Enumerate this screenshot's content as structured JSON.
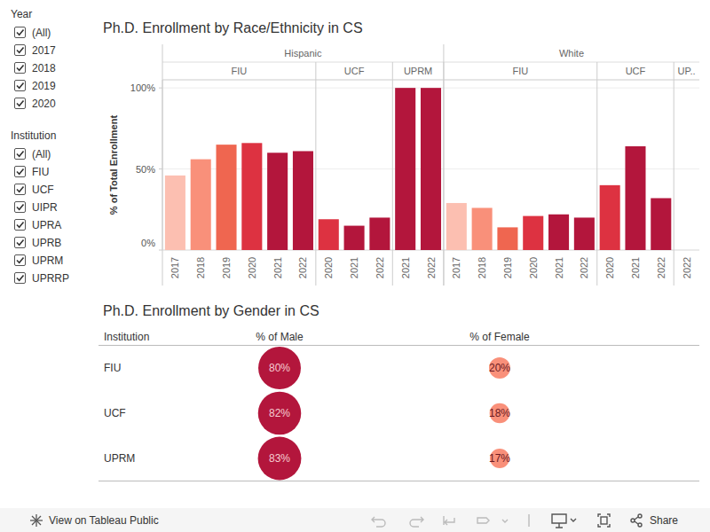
{
  "chart_data": [
    {
      "type": "bar",
      "title": "Ph.D. Enrollment by Race/Ethnicity in CS",
      "ylabel": "% of Total Enrollment",
      "categories": [
        "2017",
        "2018",
        "2019",
        "2020",
        "2021",
        "2022",
        "2020",
        "2021",
        "2022",
        "2021",
        "2022",
        "2017",
        "2018",
        "2019",
        "2020",
        "2021",
        "2022",
        "2020",
        "2021",
        "2022",
        "2022"
      ],
      "race": [
        "Hispanic",
        "Hispanic",
        "Hispanic",
        "Hispanic",
        "Hispanic",
        "Hispanic",
        "Hispanic",
        "Hispanic",
        "Hispanic",
        "Hispanic",
        "Hispanic",
        "White",
        "White",
        "White",
        "White",
        "White",
        "White",
        "White",
        "White",
        "White",
        "White"
      ],
      "institution": [
        "FIU",
        "FIU",
        "FIU",
        "FIU",
        "FIU",
        "FIU",
        "UCF",
        "UCF",
        "UCF",
        "UPRM",
        "UPRM",
        "FIU",
        "FIU",
        "FIU",
        "FIU",
        "FIU",
        "FIU",
        "UCF",
        "UCF",
        "UCF",
        "UP.."
      ],
      "values": [
        46,
        56,
        65,
        66,
        60,
        61,
        19,
        15,
        20,
        100,
        100,
        29,
        26,
        14,
        21,
        22,
        20,
        40,
        64,
        32,
        0
      ],
      "colors": [
        "#fcbfb1",
        "#f9907a",
        "#ef6650",
        "#dd3241",
        "#b3163c",
        "#b3163c",
        "#dd3241",
        "#b3163c",
        "#b3163c",
        "#b3163c",
        "#b3163c",
        "#fcbfb1",
        "#f9907a",
        "#ef6650",
        "#dd3241",
        "#b3163c",
        "#b3163c",
        "#dd3241",
        "#b3163c",
        "#b3163c",
        "#b3163c"
      ],
      "ylim": [
        0,
        105
      ],
      "yticks": [
        {
          "value": 0,
          "label": "0%"
        },
        {
          "value": 50,
          "label": "50%"
        },
        {
          "value": 100,
          "label": "100%"
        }
      ],
      "grid": true
    },
    {
      "type": "bubble_table",
      "title": "Ph.D. Enrollment by Gender in CS",
      "category_label": "Institution",
      "categories": [
        "FIU",
        "UCF",
        "UPRM"
      ],
      "data_labels": true,
      "series": [
        {
          "name": "% of Male",
          "color": "#b3163c",
          "values": [
            80,
            82,
            83
          ],
          "value_labels": [
            "80%",
            "82%",
            "83%"
          ]
        },
        {
          "name": "% of Female",
          "color": "#f9907a",
          "values": [
            20,
            18,
            17
          ],
          "value_labels": [
            "20%",
            "18%",
            "17%"
          ]
        }
      ]
    }
  ],
  "filters": [
    {
      "title": "Year",
      "options": [
        "(All)",
        "2017",
        "2018",
        "2019",
        "2020"
      ]
    },
    {
      "title": "Institution",
      "options": [
        "(All)",
        "FIU",
        "UCF",
        "UIPR",
        "UPRA",
        "UPRB",
        "UPRM",
        "UPRRP"
      ]
    }
  ],
  "footer": {
    "link": "View on Tableau Public",
    "share": "Share"
  }
}
